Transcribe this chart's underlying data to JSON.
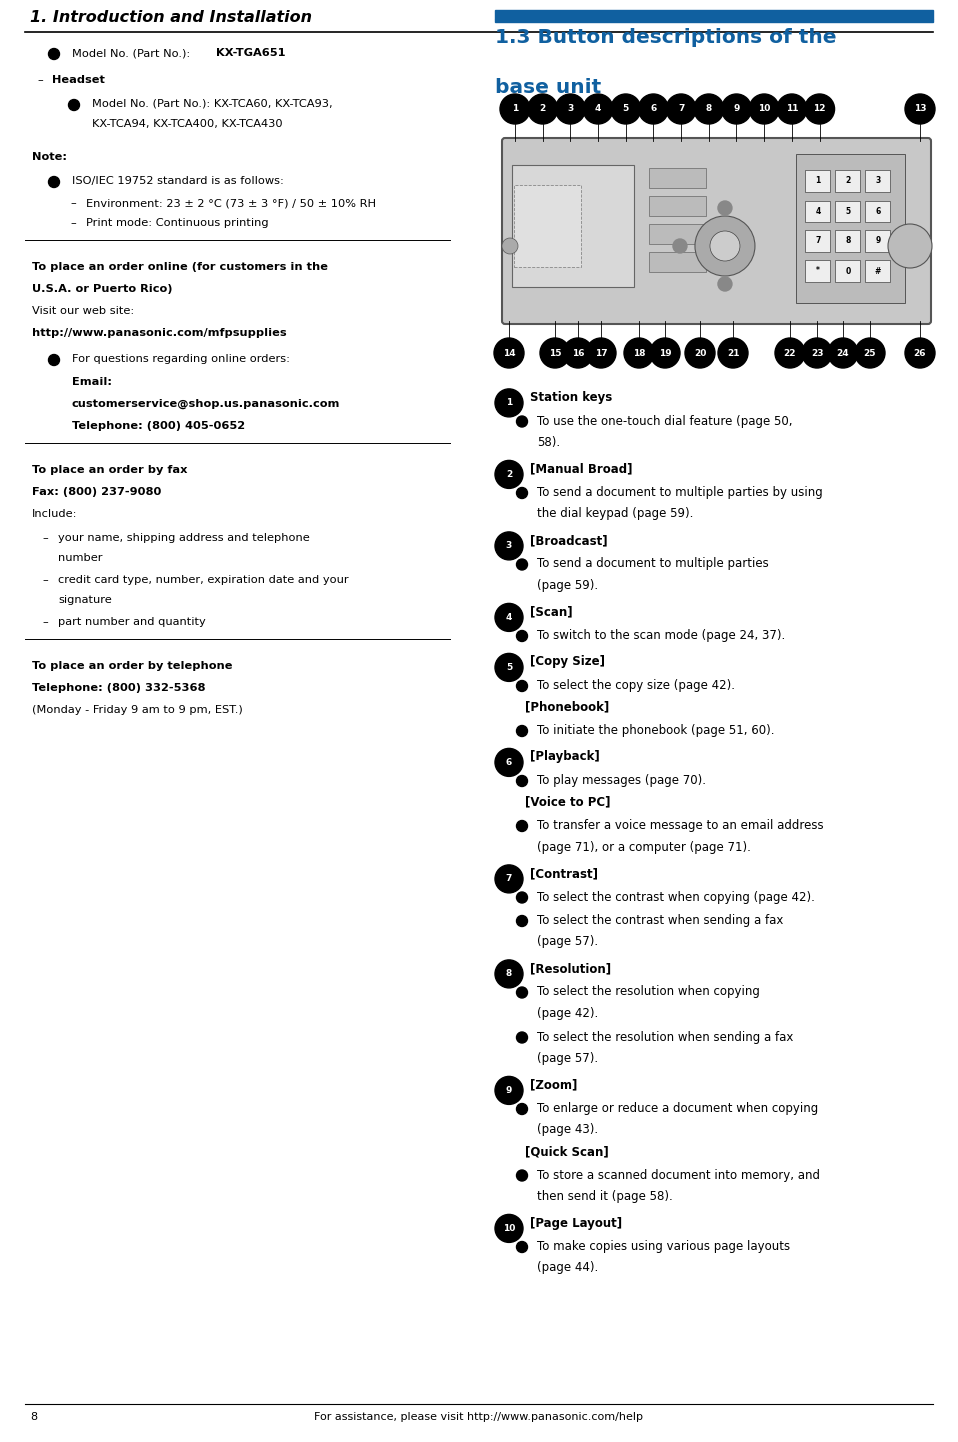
{
  "page_width": 9.58,
  "page_height": 14.42,
  "dpi": 100,
  "bg_color": "#ffffff",
  "header_title": "1. Introduction and Installation",
  "blue_color": "#1060a0",
  "black": "#000000",
  "footer_text": "For assistance, please visit http://www.panasonic.com/help",
  "footer_page": "8",
  "fs_body": 8.2,
  "fs_bold": 8.2,
  "fs_section": 14.5,
  "fs_header": 11.5
}
